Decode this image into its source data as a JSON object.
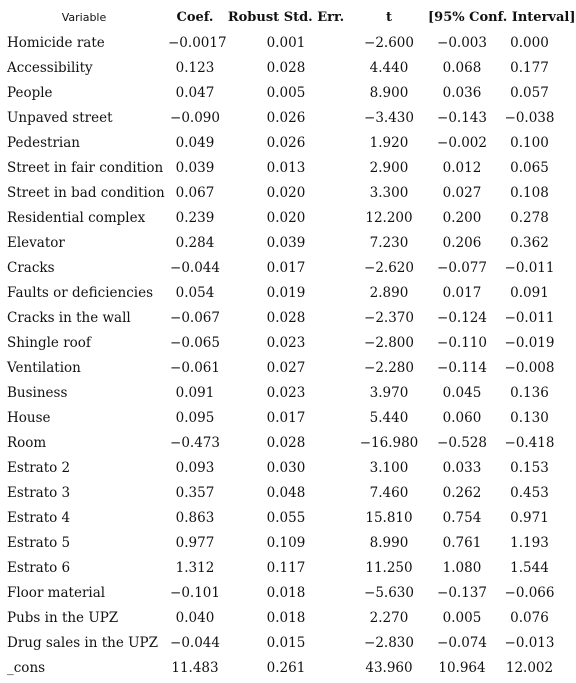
{
  "headers": {
    "variable": "Variable",
    "coef": "Coef.",
    "se": "Robust Std. Err.",
    "t": "t",
    "ci": "[95% Conf. Interval]"
  },
  "rows": [
    {
      "variable": "Homicide rate",
      "coef": "-0.0017",
      "se": "0.001",
      "t": "-2.600",
      "ci_low": "-0.003",
      "ci_high": "0.000"
    },
    {
      "variable": "Accessibility",
      "coef": "0.123",
      "se": "0.028",
      "t": "4.440",
      "ci_low": "0.068",
      "ci_high": "0.177"
    },
    {
      "variable": "People",
      "coef": "0.047",
      "se": "0.005",
      "t": "8.900",
      "ci_low": "0.036",
      "ci_high": "0.057"
    },
    {
      "variable": "Unpaved street",
      "coef": "-0.090",
      "se": "0.026",
      "t": "-3.430",
      "ci_low": "-0.143",
      "ci_high": "-0.038"
    },
    {
      "variable": "Pedestrian",
      "coef": "0.049",
      "se": "0.026",
      "t": "1.920",
      "ci_low": "-0.002",
      "ci_high": "0.100"
    },
    {
      "variable": "Street in fair condition",
      "coef": "0.039",
      "se": "0.013",
      "t": "2.900",
      "ci_low": "0.012",
      "ci_high": "0.065"
    },
    {
      "variable": "Street in bad condition",
      "coef": "0.067",
      "se": "0.020",
      "t": "3.300",
      "ci_low": "0.027",
      "ci_high": "0.108"
    },
    {
      "variable": "Residential complex",
      "coef": "0.239",
      "se": "0.020",
      "t": "12.200",
      "ci_low": "0.200",
      "ci_high": "0.278"
    },
    {
      "variable": "Elevator",
      "coef": "0.284",
      "se": "0.039",
      "t": "7.230",
      "ci_low": "0.206",
      "ci_high": "0.362"
    },
    {
      "variable": "Cracks",
      "coef": "-0.044",
      "se": "0.017",
      "t": "-2.620",
      "ci_low": "-0.077",
      "ci_high": "-0.011"
    },
    {
      "variable": "Faults or deficiencies",
      "coef": "0.054",
      "se": "0.019",
      "t": "2.890",
      "ci_low": "0.017",
      "ci_high": "0.091"
    },
    {
      "variable": "Cracks in the wall",
      "coef": "-0.067",
      "se": "0.028",
      "t": "-2.370",
      "ci_low": "-0.124",
      "ci_high": "-0.011"
    },
    {
      "variable": "Shingle roof",
      "coef": "-0.065",
      "se": "0.023",
      "t": "-2.800",
      "ci_low": "-0.110",
      "ci_high": "-0.019"
    },
    {
      "variable": "Ventilation",
      "coef": "-0.061",
      "se": "0.027",
      "t": "-2.280",
      "ci_low": "-0.114",
      "ci_high": "-0.008"
    },
    {
      "variable": "Business",
      "coef": "0.091",
      "se": "0.023",
      "t": "3.970",
      "ci_low": "0.045",
      "ci_high": "0.136"
    },
    {
      "variable": "House",
      "coef": "0.095",
      "se": "0.017",
      "t": "5.440",
      "ci_low": "0.060",
      "ci_high": "0.130"
    },
    {
      "variable": "Room",
      "coef": "-0.473",
      "se": "0.028",
      "t": "-16.980",
      "ci_low": "-0.528",
      "ci_high": "-0.418"
    },
    {
      "variable": "Estrato 2",
      "coef": "0.093",
      "se": "0.030",
      "t": "3.100",
      "ci_low": "0.033",
      "ci_high": "0.153"
    },
    {
      "variable": "Estrato 3",
      "coef": "0.357",
      "se": "0.048",
      "t": "7.460",
      "ci_low": "0.262",
      "ci_high": "0.453"
    },
    {
      "variable": "Estrato 4",
      "coef": "0.863",
      "se": "0.055",
      "t": "15.810",
      "ci_low": "0.754",
      "ci_high": "0.971"
    },
    {
      "variable": "Estrato 5",
      "coef": "0.977",
      "se": "0.109",
      "t": "8.990",
      "ci_low": "0.761",
      "ci_high": "1.193"
    },
    {
      "variable": "Estrato 6",
      "coef": "1.312",
      "se": "0.117",
      "t": "11.250",
      "ci_low": "1.080",
      "ci_high": "1.544"
    },
    {
      "variable": "Floor material",
      "coef": "-0.101",
      "se": "0.018",
      "t": "-5.630",
      "ci_low": "-0.137",
      "ci_high": "-0.066"
    },
    {
      "variable": "Pubs in the UPZ",
      "coef": "0.040",
      "se": "0.018",
      "t": "2.270",
      "ci_low": "0.005",
      "ci_high": "0.076"
    },
    {
      "variable": "Drug sales in the UPZ",
      "coef": "-0.044",
      "se": "0.015",
      "t": "-2.830",
      "ci_low": "-0.074",
      "ci_high": "-0.013"
    },
    {
      "variable": "_cons",
      "coef": "11.483",
      "se": "0.261",
      "t": "43.960",
      "ci_low": "10.964",
      "ci_high": "12.002"
    }
  ]
}
